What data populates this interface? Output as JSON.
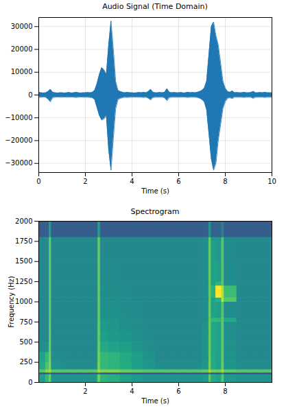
{
  "chart_data": [
    {
      "type": "area",
      "title": "Audio Signal (Time Domain)",
      "x_label": "Time (s)",
      "color": "#1f77b4",
      "grid": true,
      "xlim": [
        0,
        10
      ],
      "ylim": [
        -34000,
        34000
      ],
      "xticks": [
        0,
        2,
        4,
        6,
        8,
        10
      ],
      "yticks": [
        -30000,
        -20000,
        -10000,
        0,
        10000,
        20000,
        30000
      ],
      "x": [
        0,
        0.1,
        0.2,
        0.3,
        0.4,
        0.5,
        0.6,
        0.7,
        0.8,
        0.9,
        1,
        1.1,
        1.2,
        1.3,
        1.4,
        1.5,
        1.6,
        1.7,
        1.8,
        1.9,
        2,
        2.1,
        2.2,
        2.3,
        2.4,
        2.5,
        2.6,
        2.7,
        2.8,
        2.9,
        3,
        3.1,
        3.2,
        3.3,
        3.4,
        3.5,
        3.6,
        3.7,
        3.8,
        3.9,
        4,
        4.1,
        4.2,
        4.3,
        4.4,
        4.5,
        4.6,
        4.7,
        4.8,
        4.9,
        5,
        5.1,
        5.2,
        5.3,
        5.4,
        5.5,
        5.6,
        5.7,
        5.8,
        5.9,
        6,
        6.1,
        6.2,
        6.3,
        6.4,
        6.5,
        6.6,
        6.7,
        6.8,
        6.9,
        7,
        7.1,
        7.2,
        7.3,
        7.4,
        7.5,
        7.6,
        7.7,
        7.8,
        7.9,
        8,
        8.1,
        8.2,
        8.3,
        8.4,
        8.5,
        8.6,
        8.7,
        8.8,
        8.9,
        9,
        9.1,
        9.2,
        9.3,
        9.4,
        9.5,
        9.6,
        9.7,
        9.8,
        9.9,
        10
      ],
      "values_max": [
        1200,
        1000,
        900,
        1000,
        1500,
        2500,
        1200,
        1000,
        900,
        1000,
        1000,
        900,
        1000,
        1100,
        900,
        1000,
        1200,
        1000,
        900,
        1000,
        1000,
        1100,
        1000,
        1200,
        2000,
        5000,
        9000,
        12000,
        11000,
        9000,
        22000,
        32500,
        20000,
        6000,
        2000,
        1500,
        1200,
        1000,
        1200,
        1000,
        1000,
        900,
        1000,
        1100,
        1000,
        1200,
        1000,
        1500,
        2500,
        1200,
        1000,
        1000,
        1100,
        1000,
        1200,
        2800,
        1200,
        1000,
        1100,
        1000,
        1000,
        1100,
        900,
        1000,
        1200,
        1000,
        1100,
        1000,
        1200,
        1500,
        2000,
        3000,
        6000,
        18000,
        30000,
        32000,
        26000,
        22000,
        14000,
        6000,
        3000,
        1500,
        1200,
        1800,
        1000,
        1100,
        1000,
        1000,
        1200,
        1000,
        1000,
        1100,
        1600,
        1000,
        1000,
        1100,
        1000,
        1200,
        1000,
        1000,
        1000
      ],
      "values_min": [
        -1100,
        -1000,
        -900,
        -1000,
        -1800,
        -3000,
        -1200,
        -1000,
        -900,
        -1000,
        -1000,
        -900,
        -1000,
        -1000,
        -900,
        -1000,
        -1100,
        -1000,
        -900,
        -1000,
        -1000,
        -1000,
        -1100,
        -1200,
        -2000,
        -5500,
        -9000,
        -11000,
        -10500,
        -9000,
        -24000,
        -33000,
        -19000,
        -6000,
        -2000,
        -1500,
        -1200,
        -1000,
        -1100,
        -1000,
        -1000,
        -900,
        -1000,
        -1000,
        -1000,
        -1100,
        -1000,
        -1400,
        -2200,
        -1200,
        -1000,
        -1000,
        -1000,
        -1000,
        -1200,
        -2500,
        -1200,
        -1000,
        -1000,
        -1000,
        -1000,
        -1000,
        -900,
        -1000,
        -1100,
        -1000,
        -1000,
        -1000,
        -1100,
        -1400,
        -2000,
        -3000,
        -6500,
        -17000,
        -28000,
        -33000,
        -30000,
        -20000,
        -13000,
        -6000,
        -3000,
        -1500,
        -1200,
        -1600,
        -1000,
        -1000,
        -1000,
        -1000,
        -1100,
        -1000,
        -1000,
        -1000,
        -1500,
        -1000,
        -1000,
        -1000,
        -1000,
        -1100,
        -1000,
        -1000,
        -1000
      ]
    },
    {
      "type": "heatmap",
      "title": "Spectrogram",
      "x_label": "Time (s)",
      "y_label": "Frequency (Hz)",
      "color": "viridis",
      "grid": false,
      "xlim": [
        0,
        10
      ],
      "ylim": [
        0,
        2000
      ],
      "xticks": [
        2,
        4,
        6,
        8
      ],
      "yticks": [
        0,
        250,
        500,
        750,
        1000,
        1250,
        1500,
        1750,
        2000
      ],
      "time_bins": [
        0,
        0.3,
        0.45,
        0.55,
        1,
        1.5,
        2,
        2.5,
        2.55,
        2.65,
        3,
        3.5,
        4,
        4.5,
        5,
        5.5,
        6,
        6.5,
        7,
        7.3,
        7.4,
        7.6,
        7.85,
        7.95,
        8.5,
        9,
        9.5,
        10
      ],
      "freq_bins": [
        0,
        100,
        120,
        160,
        250,
        375,
        500,
        625,
        750,
        800,
        1000,
        1050,
        1200,
        1250,
        1500,
        1750,
        1800,
        2000
      ],
      "values": [
        [
          50,
          62,
          75,
          45,
          45,
          45,
          45,
          55,
          75,
          60,
          58,
          52,
          48,
          45,
          45,
          45,
          45,
          45,
          48,
          72,
          55,
          52,
          70,
          48,
          45,
          45,
          45
        ],
        [
          15,
          15,
          30,
          15,
          15,
          15,
          15,
          15,
          30,
          15,
          15,
          15,
          15,
          15,
          15,
          15,
          15,
          15,
          15,
          30,
          15,
          15,
          30,
          15,
          15,
          15,
          15
        ],
        [
          70,
          80,
          85,
          70,
          70,
          70,
          70,
          72,
          85,
          78,
          78,
          74,
          72,
          70,
          70,
          70,
          70,
          70,
          72,
          85,
          76,
          74,
          85,
          72,
          70,
          70,
          70
        ],
        [
          55,
          68,
          78,
          45,
          42,
          42,
          42,
          50,
          78,
          62,
          60,
          56,
          50,
          46,
          42,
          42,
          42,
          42,
          46,
          76,
          55,
          52,
          74,
          46,
          42,
          42,
          42
        ],
        [
          52,
          62,
          76,
          42,
          40,
          40,
          40,
          48,
          76,
          62,
          60,
          55,
          50,
          44,
          40,
          40,
          40,
          40,
          44,
          75,
          55,
          52,
          73,
          44,
          40,
          40,
          40
        ],
        [
          42,
          45,
          74,
          40,
          40,
          40,
          40,
          46,
          75,
          55,
          52,
          50,
          46,
          42,
          40,
          40,
          40,
          40,
          44,
          74,
          54,
          52,
          72,
          44,
          40,
          40,
          40
        ],
        [
          40,
          40,
          73,
          40,
          40,
          40,
          40,
          44,
          74,
          50,
          48,
          46,
          44,
          41,
          40,
          40,
          40,
          40,
          44,
          74,
          54,
          52,
          72,
          43,
          40,
          40,
          40
        ],
        [
          40,
          40,
          73,
          40,
          40,
          40,
          40,
          44,
          74,
          48,
          46,
          44,
          42,
          40,
          40,
          40,
          40,
          40,
          44,
          74,
          54,
          52,
          72,
          43,
          40,
          40,
          40
        ],
        [
          40,
          40,
          72,
          40,
          40,
          40,
          40,
          42,
          73,
          46,
          45,
          43,
          42,
          40,
          40,
          40,
          40,
          40,
          42,
          73,
          62,
          62,
          72,
          55,
          40,
          40,
          40
        ],
        [
          40,
          40,
          72,
          40,
          40,
          40,
          40,
          42,
          73,
          44,
          44,
          42,
          41,
          40,
          40,
          40,
          40,
          40,
          42,
          73,
          52,
          50,
          70,
          42,
          40,
          40,
          40
        ],
        [
          40,
          40,
          72,
          40,
          40,
          40,
          40,
          42,
          73,
          43,
          43,
          42,
          40,
          40,
          40,
          40,
          40,
          40,
          42,
          73,
          52,
          58,
          90,
          70,
          40,
          40,
          40
        ],
        [
          40,
          40,
          72,
          40,
          40,
          40,
          40,
          42,
          73,
          42,
          42,
          41,
          40,
          40,
          40,
          40,
          40,
          40,
          42,
          73,
          60,
          100,
          88,
          65,
          40,
          40,
          40
        ],
        [
          40,
          40,
          72,
          40,
          40,
          40,
          40,
          42,
          73,
          42,
          42,
          41,
          40,
          40,
          40,
          40,
          40,
          40,
          42,
          73,
          52,
          60,
          70,
          42,
          40,
          40,
          40
        ],
        [
          40,
          40,
          72,
          40,
          40,
          40,
          40,
          42,
          73,
          41,
          41,
          40,
          40,
          40,
          40,
          40,
          40,
          40,
          42,
          73,
          52,
          50,
          70,
          42,
          40,
          40,
          40
        ],
        [
          40,
          40,
          72,
          40,
          40,
          40,
          40,
          42,
          73,
          40,
          40,
          40,
          40,
          40,
          40,
          40,
          40,
          40,
          42,
          73,
          50,
          48,
          70,
          41,
          40,
          40,
          40
        ],
        [
          40,
          40,
          72,
          40,
          40,
          40,
          40,
          42,
          73,
          40,
          40,
          40,
          40,
          40,
          40,
          40,
          40,
          40,
          42,
          73,
          48,
          46,
          70,
          41,
          40,
          40,
          40
        ],
        [
          20,
          20,
          50,
          20,
          20,
          20,
          20,
          20,
          50,
          20,
          20,
          20,
          20,
          20,
          20,
          20,
          20,
          20,
          20,
          45,
          22,
          22,
          35,
          20,
          20,
          20,
          20
        ]
      ]
    }
  ]
}
